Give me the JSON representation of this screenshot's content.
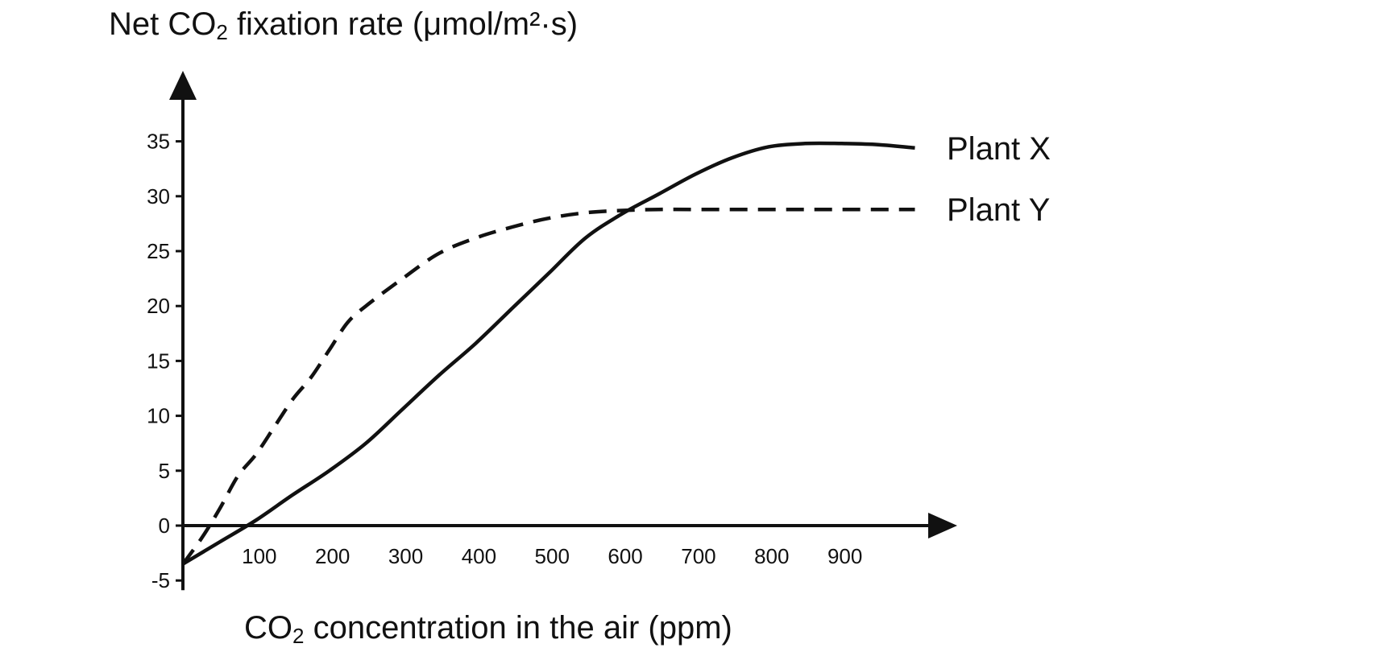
{
  "chart_data": {
    "type": "line",
    "ylabel": {
      "prefix": "Net CO",
      "sub": "2",
      "suffix": " fixation rate (μmol/m²·s)"
    },
    "xlabel": {
      "prefix": "CO",
      "sub": "2",
      "suffix": " concentration in the air (ppm)"
    },
    "xlim": [
      0,
      1030
    ],
    "ylim": [
      -5,
      40
    ],
    "yticks": [
      -5,
      0,
      5,
      10,
      15,
      20,
      25,
      30,
      35
    ],
    "xticks": [
      100,
      200,
      300,
      400,
      500,
      600,
      700,
      800,
      900
    ],
    "series": [
      {
        "name": "Plant X",
        "style": "solid",
        "x": [
          0,
          50,
          100,
          150,
          200,
          250,
          300,
          350,
          400,
          450,
          500,
          550,
          600,
          650,
          700,
          750,
          800,
          850,
          900,
          950,
          1000
        ],
        "y": [
          -3.5,
          -1.5,
          0.5,
          2.8,
          5.0,
          7.5,
          10.6,
          13.7,
          16.6,
          19.8,
          23.0,
          26.2,
          28.4,
          30.2,
          32.0,
          33.5,
          34.5,
          34.8,
          34.8,
          34.7,
          34.4
        ]
      },
      {
        "name": "Plant Y",
        "style": "dashed",
        "x": [
          0,
          25,
          50,
          75,
          100,
          125,
          150,
          175,
          200,
          225,
          250,
          300,
          350,
          400,
          450,
          500,
          550,
          600,
          650,
          700,
          800,
          900,
          1000
        ],
        "y": [
          -3.5,
          -1.2,
          1.5,
          4.5,
          6.5,
          9.0,
          11.5,
          13.5,
          16.0,
          18.5,
          20.0,
          22.5,
          24.8,
          26.2,
          27.2,
          28.0,
          28.5,
          28.7,
          28.8,
          28.8,
          28.8,
          28.8,
          28.8
        ]
      }
    ]
  }
}
